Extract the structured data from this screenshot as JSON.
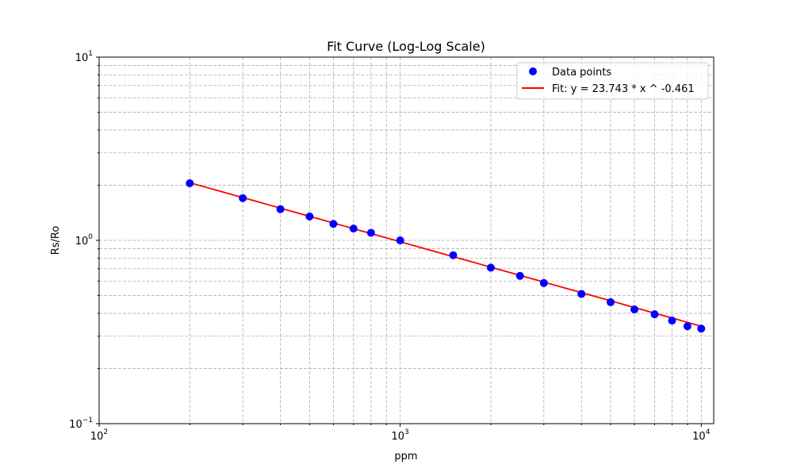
{
  "chart_data": {
    "type": "scatter",
    "title": "Fit Curve (Log-Log Scale)",
    "xlabel": "ppm",
    "ylabel": "Rs/Ro",
    "xscale": "log",
    "yscale": "log",
    "xlim": [
      100,
      11000
    ],
    "ylim": [
      0.1,
      10
    ],
    "x_ticks": [
      {
        "base": "10",
        "exp": "2"
      },
      {
        "base": "10",
        "exp": "3"
      },
      {
        "base": "10",
        "exp": "4"
      }
    ],
    "y_ticks": [
      {
        "base": "10",
        "exp": "−1"
      },
      {
        "base": "10",
        "exp": "0"
      },
      {
        "base": "10",
        "exp": "1"
      }
    ],
    "grid": true,
    "legend_position": "top-right",
    "series": [
      {
        "name": "Data points",
        "kind": "scatter",
        "color": "#0000ff",
        "x": [
          200,
          300,
          400,
          500,
          600,
          700,
          800,
          1000,
          1500,
          2000,
          2500,
          3000,
          4000,
          5000,
          6000,
          7000,
          8000,
          9000,
          10000
        ],
        "y": [
          2.05,
          1.7,
          1.48,
          1.35,
          1.23,
          1.16,
          1.1,
          1.0,
          0.83,
          0.71,
          0.64,
          0.585,
          0.51,
          0.46,
          0.42,
          0.395,
          0.365,
          0.34,
          0.33
        ]
      },
      {
        "name": "Fit: y = 23.743 * x ^ -0.461",
        "kind": "line",
        "color": "#ff0000",
        "coef": 23.743,
        "exponent": -0.461,
        "x_range": [
          200,
          10000
        ]
      }
    ]
  }
}
